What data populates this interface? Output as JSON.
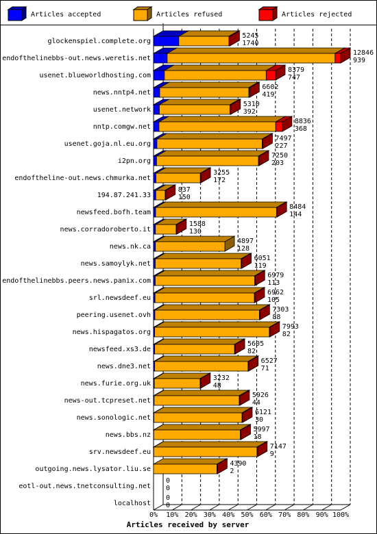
{
  "chart_data": {
    "type": "bar",
    "orientation": "horizontal",
    "stacked": true,
    "categories": [
      "glockenspiel.complete.org",
      "endofthelinebbs-out.news.weretis.net",
      "usenet.blueworldhosting.com",
      "news.nntp4.net",
      "usenet.network",
      "nntp.comgw.net",
      "usenet.goja.nl.eu.org",
      "i2pn.org",
      "endoftheline-out.news.chmurka.net",
      "194.87.241.33",
      "newsfeed.bofh.team",
      "news.corradoroberto.it",
      "news.nk.ca",
      "news.samoylyk.net",
      "endofthelinebbs.peers.news.panix.com",
      "srl.newsdeef.eu",
      "peering.usenet.ovh",
      "news.hispagatos.org",
      "newsfeed.xs3.de",
      "news.dne3.net",
      "news.furie.org.uk",
      "news-out.tcpreset.net",
      "news.sonologic.net",
      "news.bbs.nz",
      "srv.newsdeef.eu",
      "outgoing.news.lysator.liu.se",
      "eotl-out.news.tnetconsulting.net",
      "localhost"
    ],
    "series": [
      {
        "name": "Articles accepted",
        "color": "#0000ff",
        "values": [
          13.5,
          7.3,
          5.8,
          3.3,
          3.1,
          2.9,
          1.8,
          1.6,
          1.3,
          1.2,
          1.1,
          1.0,
          1.0,
          0.9,
          0.9,
          0.8,
          0.7,
          0.6,
          0.6,
          0.6,
          0.4,
          0.3,
          0.2,
          0.1,
          0.1,
          0,
          0,
          0
        ]
      },
      {
        "name": "Articles refused",
        "color": "#ffaa00",
        "values": [
          26.8,
          89.7,
          54.4,
          47.6,
          37.7,
          62.4,
          56.3,
          54.5,
          23.7,
          5.0,
          64.6,
          11.1,
          37.1,
          45.9,
          53.1,
          53.1,
          55.9,
          61.3,
          42.7,
          49.9,
          24.5,
          45.5,
          47.1,
          46.3,
          55.2,
          33.9,
          0,
          0
        ]
      },
      {
        "name": "Articles rejected",
        "color": "#ff0000",
        "values": [
          0.5,
          3.0,
          5.0,
          0.5,
          0.5,
          3.5,
          0.3,
          0.3,
          0.3,
          0.3,
          0.3,
          0.3,
          0,
          0.3,
          0.3,
          0.3,
          0.3,
          0.3,
          0.3,
          0.3,
          0.3,
          0.3,
          0.3,
          0.3,
          0.3,
          0.3,
          0,
          0
        ]
      }
    ],
    "offered": [
      5245,
      12846,
      8379,
      6602,
      5310,
      8836,
      7497,
      7250,
      3255,
      837,
      8484,
      1588,
      4897,
      6051,
      6979,
      6962,
      7303,
      7993,
      5605,
      6527,
      3232,
      5926,
      6121,
      5997,
      7147,
      4390,
      0,
      0
    ],
    "accepted_count": [
      1740,
      939,
      747,
      419,
      392,
      368,
      227,
      203,
      172,
      150,
      144,
      130,
      128,
      119,
      113,
      105,
      88,
      82,
      82,
      71,
      48,
      44,
      30,
      18,
      9,
      2,
      0,
      0
    ],
    "xlim": [
      0,
      100
    ],
    "xticks": [
      {
        "value": 0,
        "label": "0%"
      },
      {
        "value": 10,
        "label": "10%"
      },
      {
        "value": 20,
        "label": "20%"
      },
      {
        "value": 30,
        "label": "30%"
      },
      {
        "value": 40,
        "label": "40%"
      },
      {
        "value": 50,
        "label": "50%"
      },
      {
        "value": 60,
        "label": "60%"
      },
      {
        "value": 70,
        "label": "70%"
      },
      {
        "value": 80,
        "label": "80%"
      },
      {
        "value": 90,
        "label": "90%"
      },
      {
        "value": 100,
        "label": "100%"
      }
    ],
    "xlabel": "Articles received by server",
    "grid": true
  }
}
